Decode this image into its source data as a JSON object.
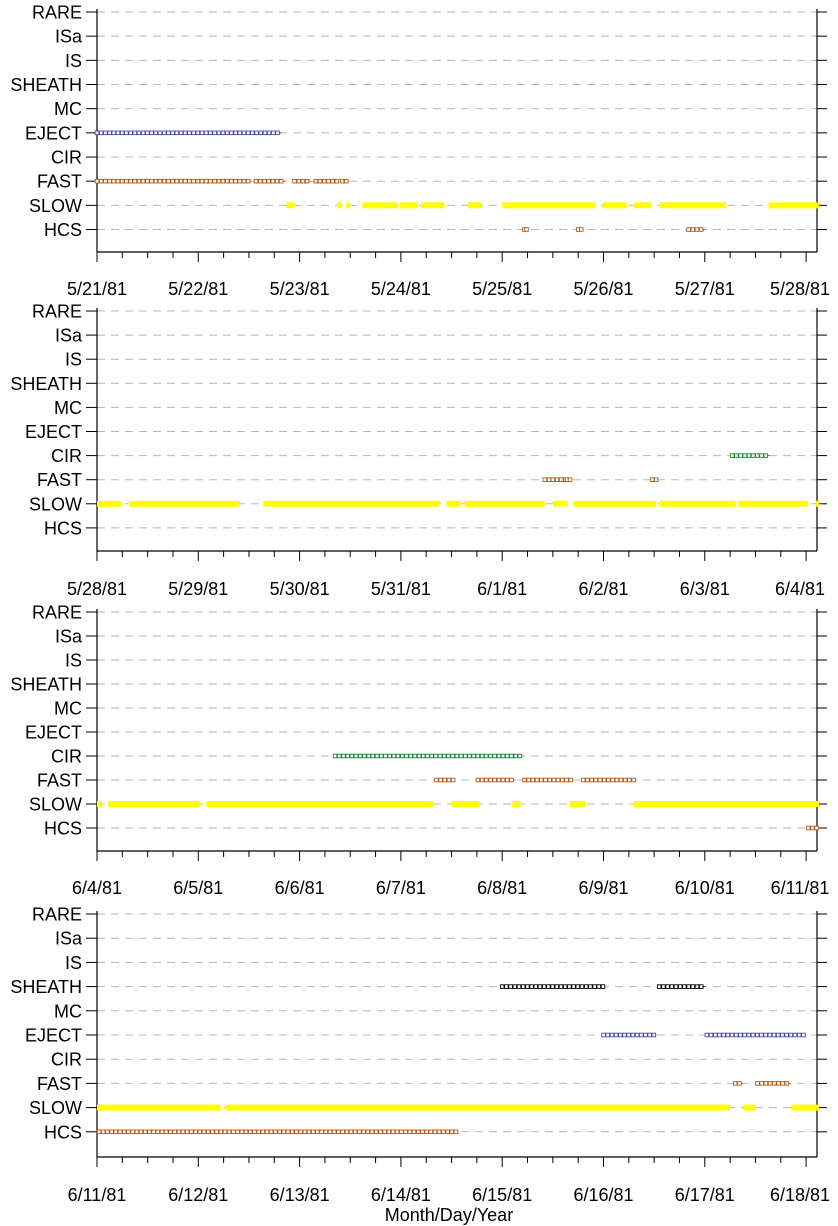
{
  "figure": {
    "xlabel": "Month/Day/Year"
  },
  "chart_data": [
    {
      "type": "scatter",
      "categories": [
        "RARE",
        "ISa",
        "IS",
        "SHEATH",
        "MC",
        "EJECT",
        "CIR",
        "FAST",
        "SLOW",
        "HCS"
      ],
      "x_ticks": [
        "5/21/81",
        "5/22/81",
        "5/23/81",
        "5/24/81",
        "5/25/81",
        "5/26/81",
        "5/27/81",
        "5/28/81"
      ],
      "xlim_days": [
        0,
        7.13
      ],
      "xlabel": "",
      "series": [
        {
          "category": "EJECT",
          "color": "#4a4aa8",
          "style": "squares",
          "intervals": [
            [
              0.0,
              1.82
            ]
          ]
        },
        {
          "category": "FAST",
          "color": "#b05a1a",
          "style": "squares",
          "intervals": [
            [
              0.0,
              1.52
            ],
            [
              1.57,
              1.86
            ],
            [
              1.95,
              2.11
            ],
            [
              2.16,
              2.38
            ],
            [
              2.42,
              2.47
            ]
          ]
        },
        {
          "category": "SLOW",
          "color": "#ffff00",
          "style": "bar",
          "intervals": [
            [
              1.87,
              1.95
            ],
            [
              2.37,
              2.42
            ],
            [
              2.46,
              2.5
            ],
            [
              2.62,
              2.96
            ],
            [
              2.99,
              3.16
            ],
            [
              3.2,
              3.43
            ],
            [
              3.66,
              3.79
            ],
            [
              4.0,
              4.92
            ],
            [
              4.99,
              5.23
            ],
            [
              5.3,
              5.47
            ],
            [
              5.55,
              6.21
            ],
            [
              6.63,
              7.13
            ]
          ]
        },
        {
          "category": "HCS",
          "color": "#b05a1a",
          "style": "squares",
          "intervals": [
            [
              4.22,
              4.24
            ],
            [
              4.75,
              4.78
            ],
            [
              5.84,
              6.0
            ]
          ]
        }
      ]
    },
    {
      "type": "scatter",
      "categories": [
        "RARE",
        "ISa",
        "IS",
        "SHEATH",
        "MC",
        "EJECT",
        "CIR",
        "FAST",
        "SLOW",
        "HCS"
      ],
      "x_ticks": [
        "5/28/81",
        "5/29/81",
        "5/30/81",
        "5/31/81",
        "6/1/81",
        "6/2/81",
        "6/3/81",
        "6/4/81"
      ],
      "xlim_days": [
        0,
        7.13
      ],
      "xlabel": "",
      "series": [
        {
          "category": "CIR",
          "color": "#1a8a3a",
          "style": "squares",
          "intervals": [
            [
              6.27,
              6.64
            ]
          ]
        },
        {
          "category": "FAST",
          "color": "#b05a1a",
          "style": "squares",
          "intervals": [
            [
              4.42,
              4.5
            ],
            [
              4.5,
              4.65
            ],
            [
              4.64,
              4.67
            ],
            [
              5.48,
              5.52
            ]
          ]
        },
        {
          "category": "SLOW",
          "color": "#ffff00",
          "style": "bar",
          "intervals": [
            [
              0.0,
              0.24
            ],
            [
              0.32,
              1.4
            ],
            [
              1.64,
              3.38
            ],
            [
              3.45,
              3.59
            ],
            [
              3.63,
              4.42
            ],
            [
              4.5,
              4.64
            ],
            [
              4.71,
              5.52
            ],
            [
              5.55,
              6.3
            ],
            [
              6.33,
              7.02
            ],
            [
              7.1,
              7.13
            ]
          ]
        }
      ]
    },
    {
      "type": "scatter",
      "categories": [
        "RARE",
        "ISa",
        "IS",
        "SHEATH",
        "MC",
        "EJECT",
        "CIR",
        "FAST",
        "SLOW",
        "HCS"
      ],
      "x_ticks": [
        "6/4/81",
        "6/5/81",
        "6/6/81",
        "6/7/81",
        "6/8/81",
        "6/9/81",
        "6/10/81",
        "6/11/81"
      ],
      "xlim_days": [
        0,
        7.13
      ],
      "xlabel": "",
      "series": [
        {
          "category": "CIR",
          "color": "#1a8a3a",
          "style": "squares",
          "intervals": [
            [
              2.35,
              4.2
            ]
          ]
        },
        {
          "category": "FAST",
          "color": "#b05a1a",
          "style": "squares",
          "intervals": [
            [
              3.35,
              3.52
            ],
            [
              3.76,
              4.13
            ],
            [
              4.22,
              4.68
            ],
            [
              4.8,
              5.3
            ]
          ]
        },
        {
          "category": "SLOW",
          "color": "#ffff00",
          "style": "bar",
          "intervals": [
            [
              0.0,
              0.04
            ],
            [
              0.11,
              1.02
            ],
            [
              1.08,
              3.32
            ],
            [
              3.5,
              3.77
            ],
            [
              4.1,
              4.18
            ],
            [
              4.67,
              4.82
            ],
            [
              5.3,
              7.13
            ]
          ]
        },
        {
          "category": "HCS",
          "color": "#b05a1a",
          "style": "squares",
          "intervals": [
            [
              7.02,
              7.13
            ]
          ]
        }
      ]
    },
    {
      "type": "scatter",
      "categories": [
        "RARE",
        "ISa",
        "IS",
        "SHEATH",
        "MC",
        "EJECT",
        "CIR",
        "FAST",
        "SLOW",
        "HCS"
      ],
      "x_ticks": [
        "6/11/81",
        "6/12/81",
        "6/13/81",
        "6/14/81",
        "6/15/81",
        "6/16/81",
        "6/17/81",
        "6/18/81"
      ],
      "xlim_days": [
        0,
        7.13
      ],
      "xlabel": "Month/Day/Year",
      "series": [
        {
          "category": "SHEATH",
          "color": "#000000",
          "style": "squares",
          "intervals": [
            [
              4.0,
              5.0
            ],
            [
              5.55,
              6.0
            ]
          ]
        },
        {
          "category": "EJECT",
          "color": "#4a4aa8",
          "style": "squares",
          "intervals": [
            [
              5.0,
              5.52
            ],
            [
              6.02,
              7.0
            ]
          ]
        },
        {
          "category": "FAST",
          "color": "#b05a1a",
          "style": "squares",
          "intervals": [
            [
              6.3,
              6.38
            ],
            [
              6.52,
              6.85
            ]
          ]
        },
        {
          "category": "SLOW",
          "color": "#ffff00",
          "style": "bar",
          "intervals": [
            [
              0.0,
              1.22
            ],
            [
              1.27,
              6.25
            ],
            [
              6.38,
              6.5
            ],
            [
              6.85,
              7.13
            ]
          ]
        },
        {
          "category": "HCS",
          "color": "#b05a1a",
          "style": "squares",
          "intervals": [
            [
              0.02,
              3.57
            ]
          ]
        }
      ]
    }
  ]
}
